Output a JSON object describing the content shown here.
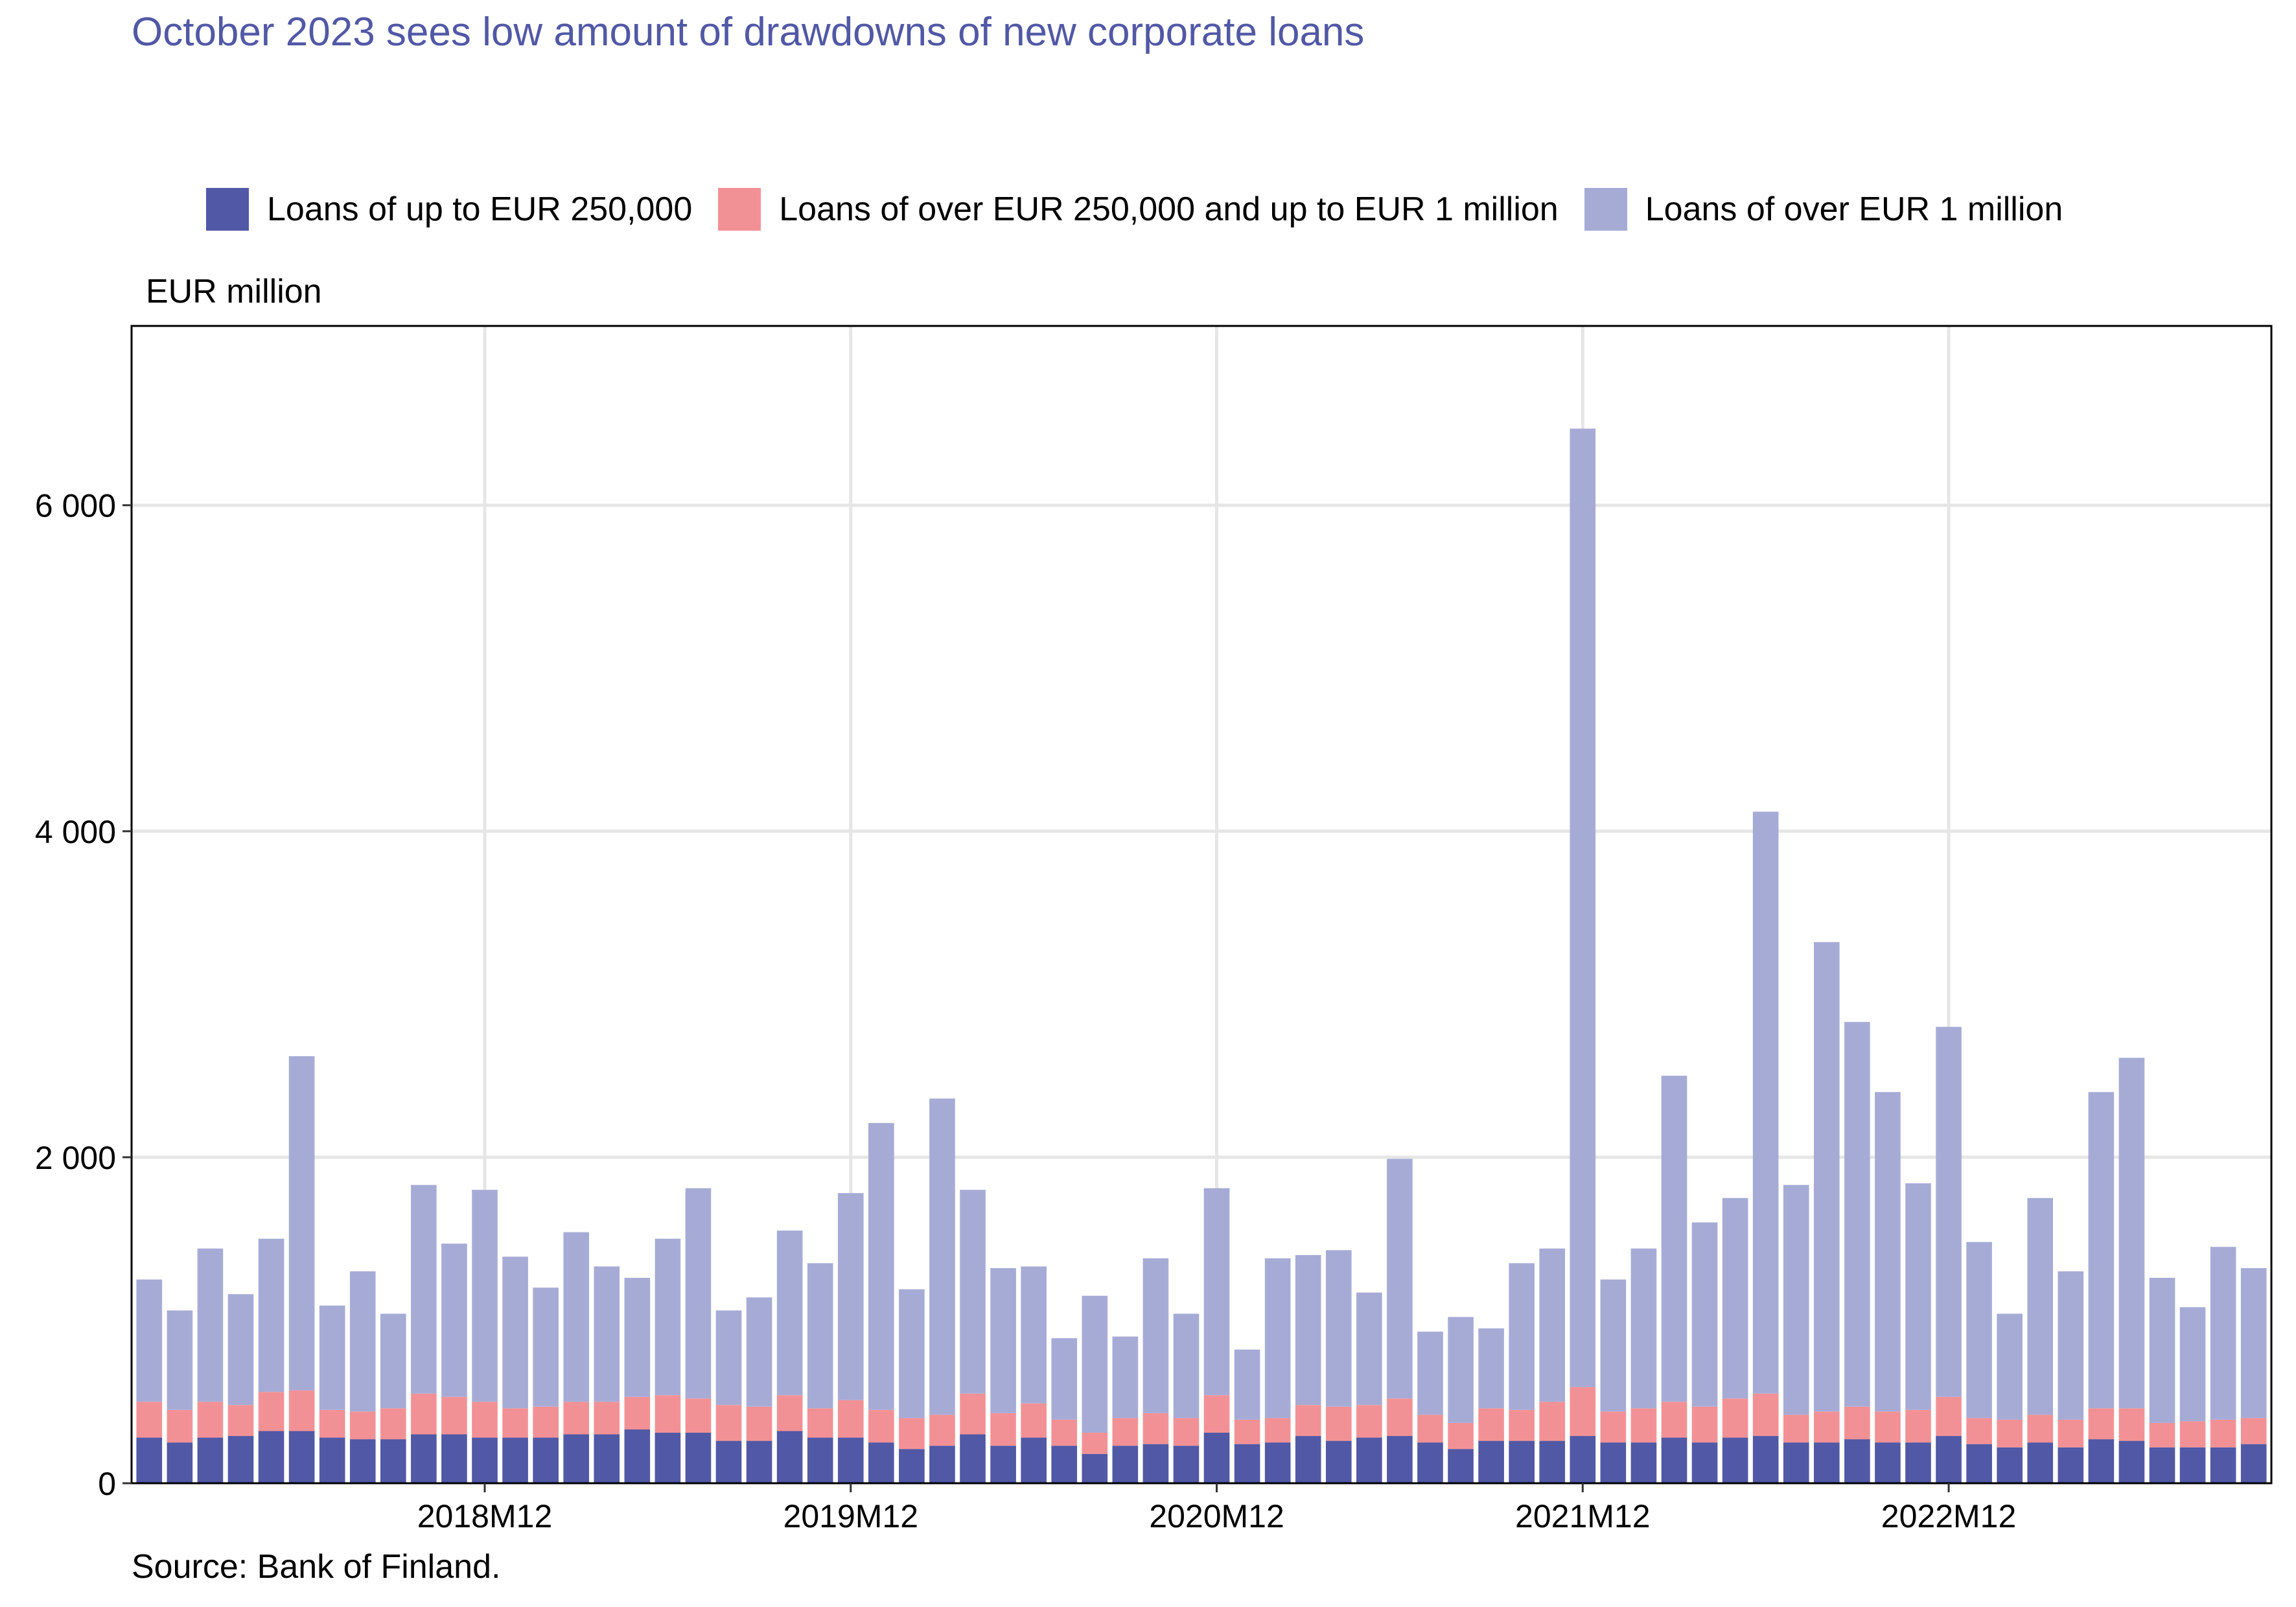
{
  "title": "October 2023 sees low amount of drawdowns of new corporate loans",
  "unit_label": "EUR million",
  "source": "Source: Bank of Finland.",
  "legend": [
    {
      "label": "Loans of up to EUR 250,000",
      "color": "#5158A5"
    },
    {
      "label": "Loans of over EUR 250,000 and up to EUR 1 million",
      "color": "#F29195"
    },
    {
      "label": "Loans of over EUR 1 million",
      "color": "#A6ABD6"
    }
  ],
  "chart_data": {
    "type": "bar",
    "stacked": true,
    "grid": true,
    "legend_position": "top",
    "ylim": [
      0,
      7100
    ],
    "yticks": [
      {
        "value": 0,
        "label": "0"
      },
      {
        "value": 2000,
        "label": "2 000"
      },
      {
        "value": 4000,
        "label": "4 000"
      },
      {
        "value": 6000,
        "label": "6 000"
      }
    ],
    "xticks": [
      "2018M12",
      "2019M12",
      "2020M12",
      "2021M12",
      "2022M12"
    ],
    "categories": [
      "2018M01",
      "2018M02",
      "2018M03",
      "2018M04",
      "2018M05",
      "2018M06",
      "2018M07",
      "2018M08",
      "2018M09",
      "2018M10",
      "2018M11",
      "2018M12",
      "2019M01",
      "2019M02",
      "2019M03",
      "2019M04",
      "2019M05",
      "2019M06",
      "2019M07",
      "2019M08",
      "2019M09",
      "2019M10",
      "2019M11",
      "2019M12",
      "2020M01",
      "2020M02",
      "2020M03",
      "2020M04",
      "2020M05",
      "2020M06",
      "2020M07",
      "2020M08",
      "2020M09",
      "2020M10",
      "2020M11",
      "2020M12",
      "2021M01",
      "2021M02",
      "2021M03",
      "2021M04",
      "2021M05",
      "2021M06",
      "2021M07",
      "2021M08",
      "2021M09",
      "2021M10",
      "2021M11",
      "2021M12",
      "2022M01",
      "2022M02",
      "2022M03",
      "2022M04",
      "2022M05",
      "2022M06",
      "2022M07",
      "2022M08",
      "2022M09",
      "2022M10",
      "2022M11",
      "2022M12",
      "2023M01",
      "2023M02",
      "2023M03",
      "2023M04",
      "2023M05",
      "2023M06",
      "2023M07",
      "2023M08",
      "2023M09",
      "2023M10"
    ],
    "series": [
      {
        "name": "Loans of up to EUR 250,000",
        "color": "#5158A5",
        "values": [
          280,
          250,
          280,
          290,
          320,
          320,
          280,
          270,
          270,
          300,
          300,
          280,
          280,
          280,
          300,
          300,
          330,
          310,
          310,
          260,
          260,
          320,
          280,
          280,
          250,
          210,
          230,
          300,
          230,
          280,
          230,
          180,
          230,
          240,
          230,
          310,
          240,
          250,
          290,
          260,
          280,
          290,
          250,
          210,
          260,
          260,
          260,
          290,
          250,
          250,
          280,
          250,
          280,
          290,
          250,
          250,
          270,
          250,
          250,
          290,
          240,
          220,
          250,
          220,
          270,
          260,
          220,
          220,
          220,
          240
        ]
      },
      {
        "name": "Loans of over EUR 250,000 and up to EUR 1 million",
        "color": "#F29195",
        "values": [
          220,
          200,
          220,
          190,
          240,
          250,
          170,
          170,
          190,
          250,
          230,
          220,
          180,
          190,
          200,
          200,
          200,
          230,
          210,
          220,
          210,
          220,
          180,
          230,
          200,
          190,
          190,
          250,
          200,
          210,
          160,
          130,
          170,
          190,
          170,
          230,
          150,
          150,
          190,
          210,
          200,
          230,
          170,
          160,
          200,
          190,
          240,
          300,
          190,
          210,
          220,
          220,
          240,
          260,
          170,
          190,
          200,
          190,
          200,
          240,
          160,
          170,
          170,
          170,
          190,
          200,
          150,
          160,
          170,
          160
        ]
      },
      {
        "name": "Loans of over EUR 1 million",
        "color": "#A6ABD6",
        "values": [
          750,
          610,
          940,
          680,
          940,
          2050,
          640,
          860,
          580,
          1280,
          940,
          1300,
          930,
          730,
          1040,
          830,
          730,
          960,
          1290,
          580,
          670,
          1010,
          890,
          1270,
          1760,
          790,
          1940,
          1250,
          890,
          840,
          500,
          840,
          500,
          950,
          640,
          1270,
          430,
          980,
          920,
          960,
          690,
          1470,
          510,
          650,
          490,
          900,
          940,
          5880,
          810,
          980,
          2000,
          1130,
          1230,
          3570,
          1410,
          2880,
          2360,
          1960,
          1390,
          2270,
          1080,
          650,
          1330,
          910,
          1940,
          2150,
          890,
          700,
          1060,
          920
        ]
      }
    ]
  }
}
